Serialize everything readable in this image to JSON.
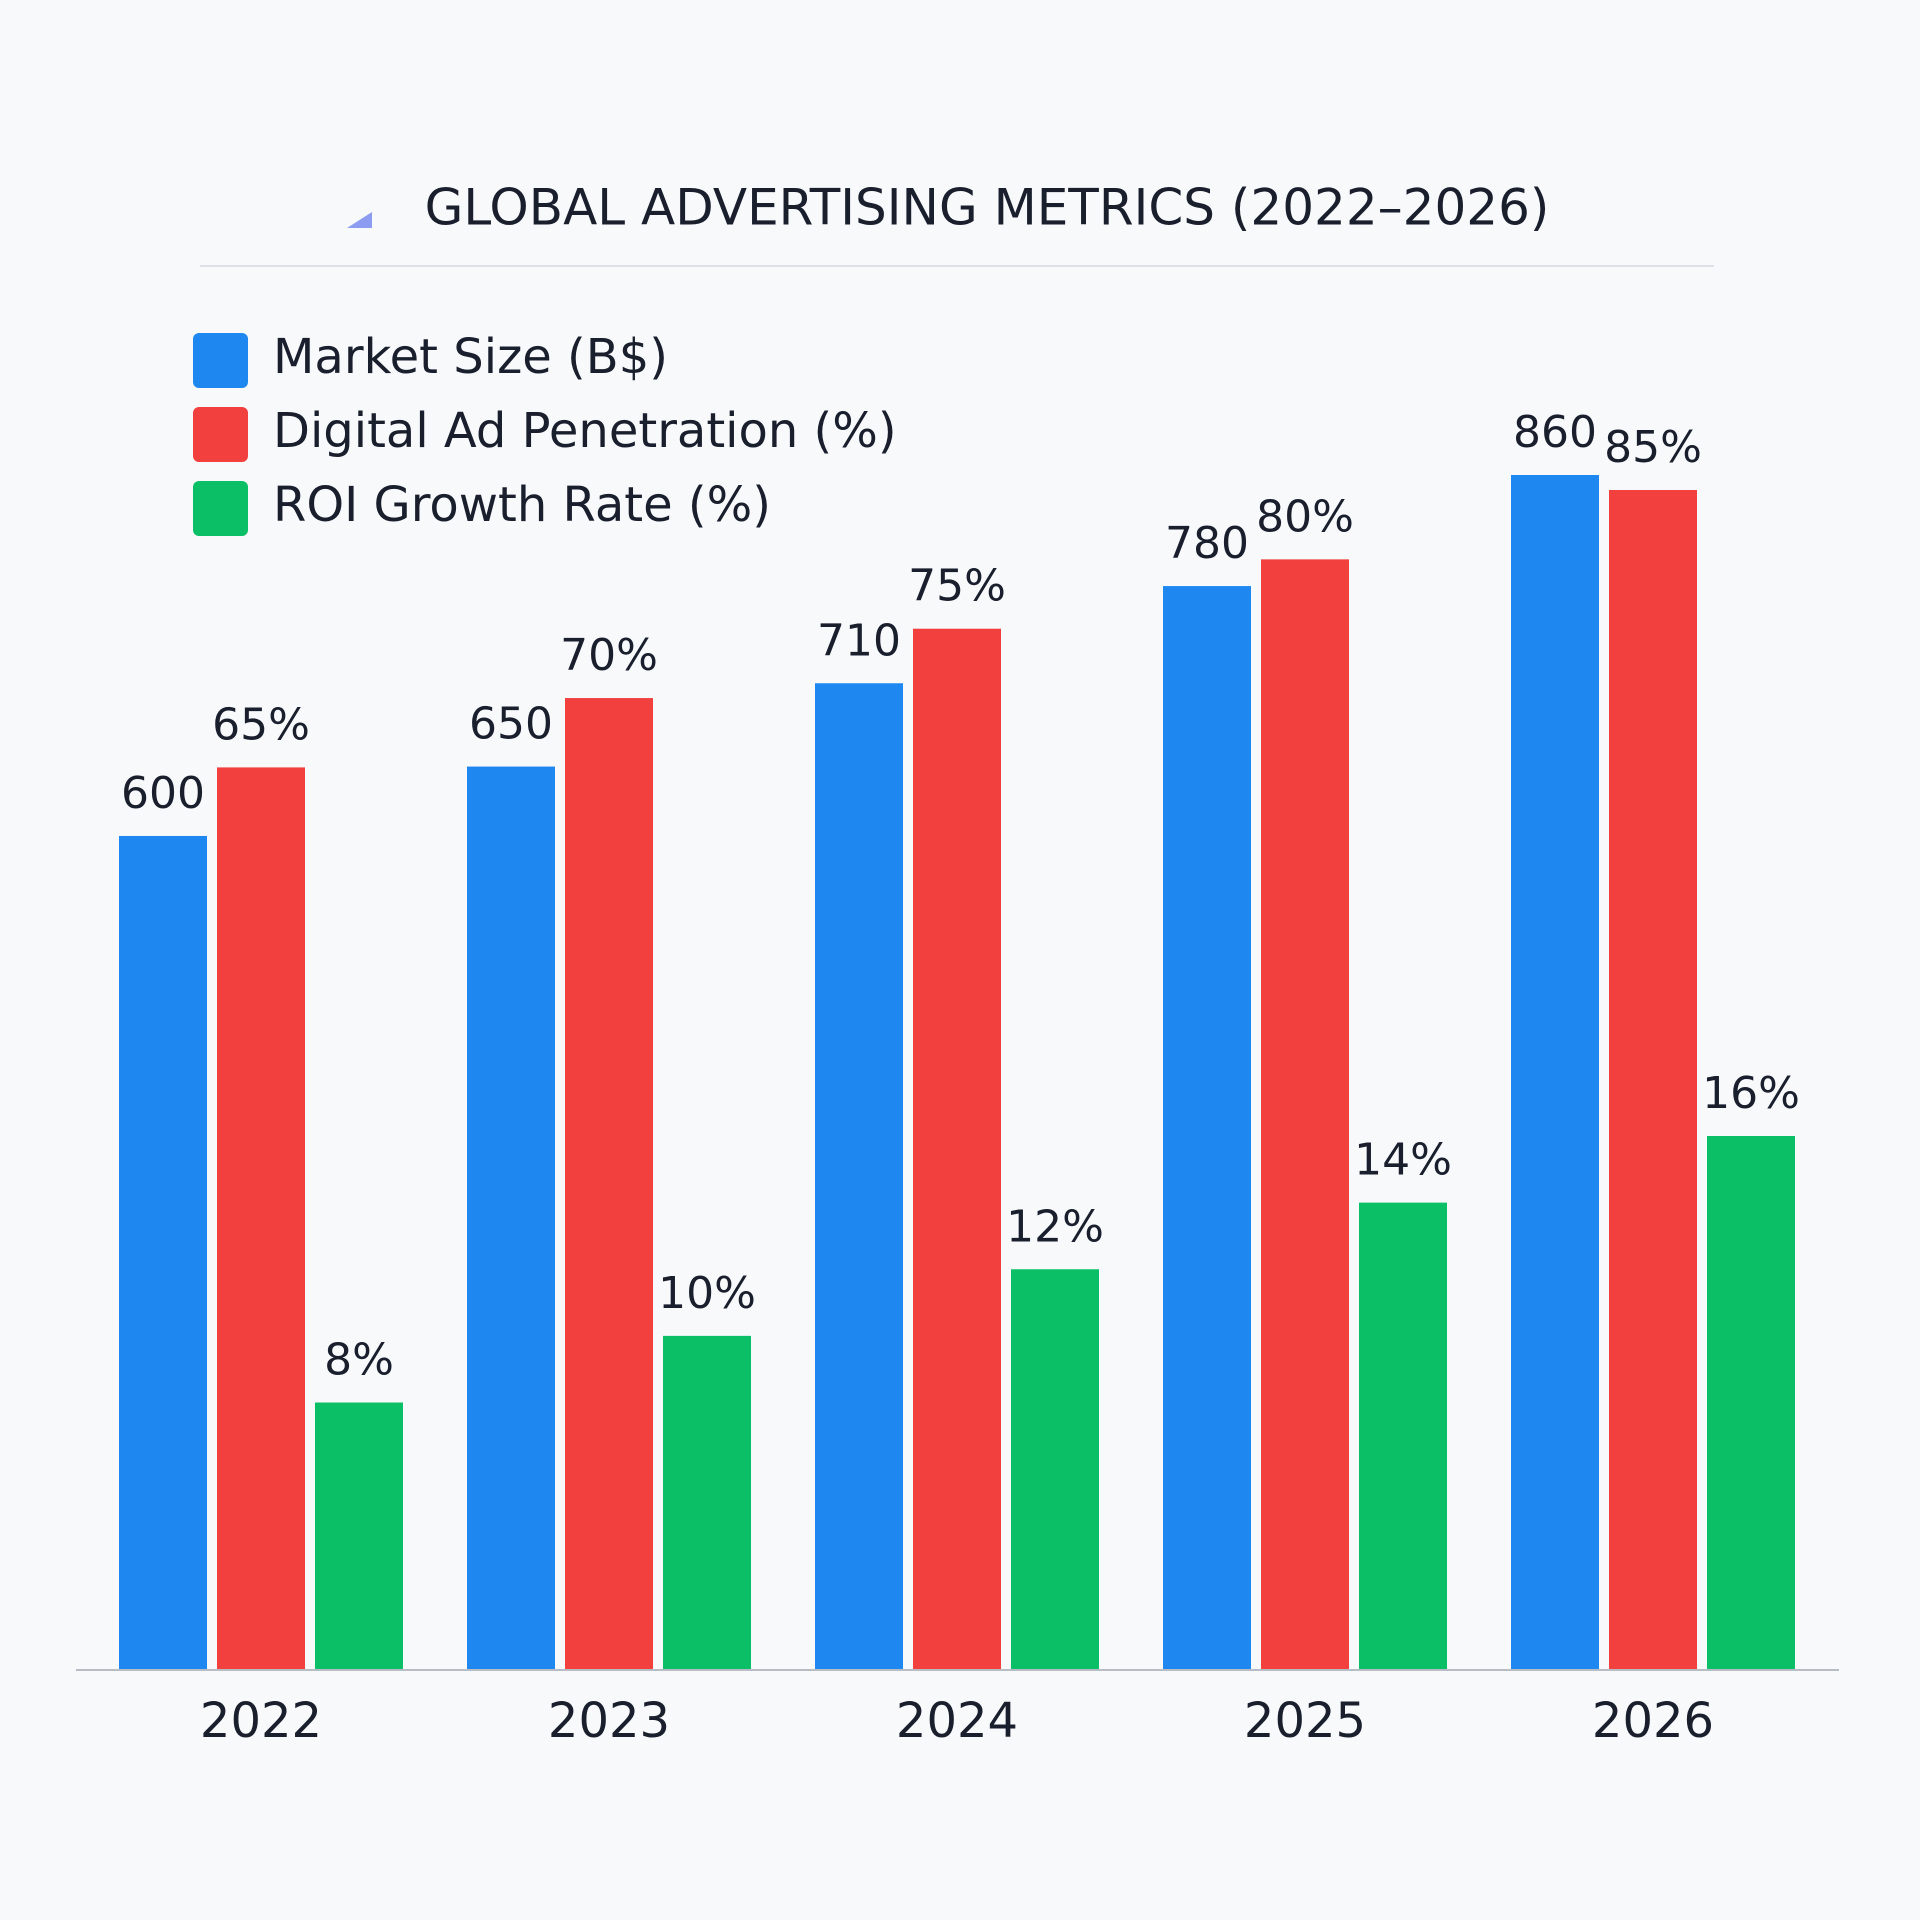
{
  "chart_data": {
    "type": "bar",
    "title": "GLOBAL ADVERTISING METRICS (2022–2026)",
    "categories": [
      "2022",
      "2023",
      "2024",
      "2025",
      "2026"
    ],
    "series": [
      {
        "name": "Market Size (B$)",
        "color": "#1e88f0",
        "values": [
          600,
          650,
          710,
          780,
          860
        ]
      },
      {
        "name": "Digital Ad Penetration (%)",
        "color": "#f2403e",
        "values": [
          65,
          70,
          75,
          80,
          85
        ],
        "value_labels": [
          "65%",
          "70%",
          "75%",
          "80%",
          "85%"
        ]
      },
      {
        "name": "ROI Growth Rate (%)",
        "color": "#0bbf66",
        "values": [
          8,
          10,
          12,
          14,
          16
        ],
        "value_labels": [
          "8%",
          "10%",
          "12%",
          "14%",
          "16%"
        ]
      }
    ],
    "legend": "top-left"
  }
}
